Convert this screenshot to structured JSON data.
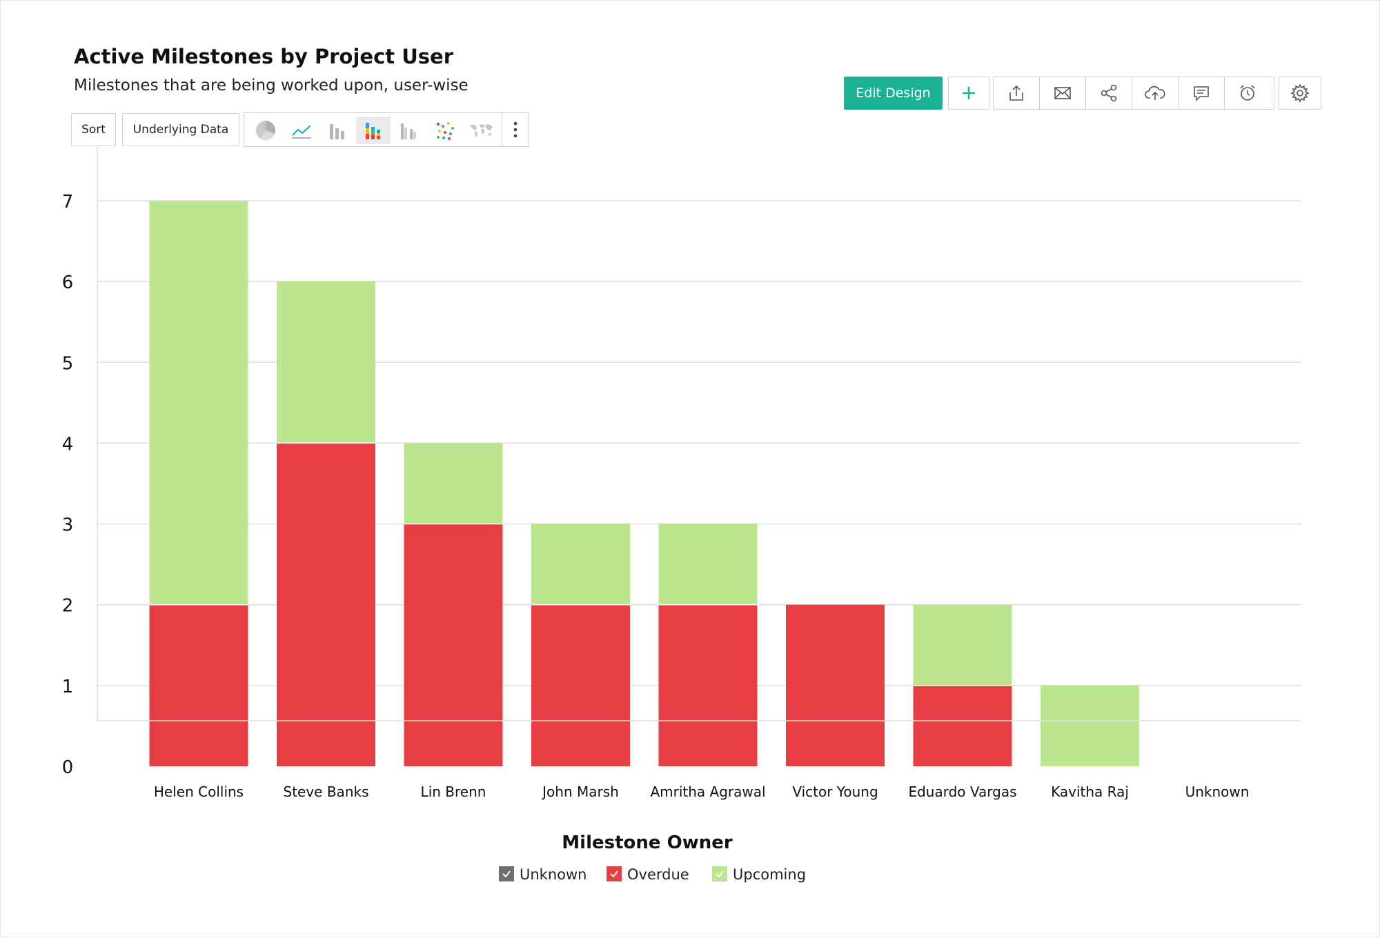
{
  "header": {
    "title": "Active Milestones by Project User",
    "subtitle": "Milestones that are being worked upon, user-wise"
  },
  "toolbar": {
    "sort_label": "Sort",
    "underlying_label": "Underlying Data",
    "chart_types": [
      "pie-chart-icon",
      "line-chart-icon",
      "bar-chart-icon",
      "stacked-bar-chart-icon",
      "grouped-bar-chart-icon",
      "scatter-chart-icon",
      "map-chart-icon"
    ],
    "active_chart_type": "stacked-bar-chart-icon",
    "edit_label": "Edit Design",
    "actions_group1": [
      "add-icon"
    ],
    "actions_group2": [
      "export-icon",
      "email-icon",
      "share-icon",
      "publish-cloud-icon",
      "comment-icon",
      "alarm-icon"
    ],
    "actions_group3": [
      "settings-icon"
    ]
  },
  "colors": {
    "accent": "#1ab394",
    "unknown": "#6e6e6e",
    "overdue": "#e83e43",
    "upcoming": "#bbe58e"
  },
  "chart_data": {
    "type": "bar",
    "stacked": true,
    "title": "",
    "xlabel": "Milestone Owner",
    "ylabel": "",
    "ylim": [
      0,
      7
    ],
    "y_ticks": [
      0,
      1,
      2,
      3,
      4,
      5,
      6,
      7
    ],
    "grid": true,
    "legend_position": "bottom",
    "categories": [
      "Helen Collins",
      "Steve Banks",
      "Lin Brenn",
      "John Marsh",
      "Amritha Agrawal",
      "Victor Young",
      "Eduardo Vargas",
      "Kavitha Raj",
      "Unknown"
    ],
    "series": [
      {
        "name": "Unknown",
        "color": "#6e6e6e",
        "values": [
          0,
          0,
          0,
          0,
          0,
          0,
          0,
          0,
          0
        ]
      },
      {
        "name": "Overdue",
        "color": "#e83e43",
        "values": [
          2,
          4,
          3,
          2,
          2,
          2,
          1,
          0,
          0
        ]
      },
      {
        "name": "Upcoming",
        "color": "#bbe58e",
        "values": [
          5,
          2,
          1,
          1,
          1,
          0,
          1,
          1,
          0
        ]
      }
    ]
  }
}
